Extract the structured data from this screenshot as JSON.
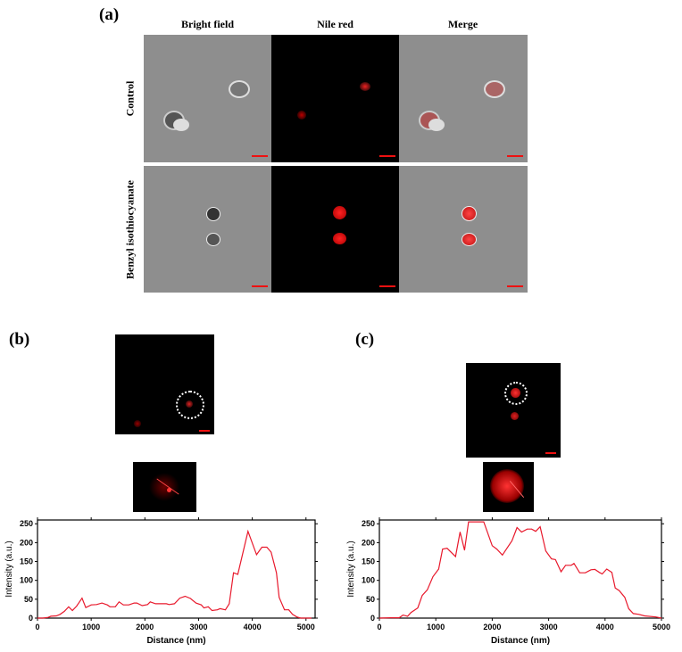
{
  "panel_a": {
    "label": "(a)",
    "columns": [
      "Bright field",
      "Nile red",
      "Merge"
    ],
    "rows": [
      "Control",
      "Benzyl isothiocyanate"
    ]
  },
  "panel_b": {
    "label": "(b)"
  },
  "panel_c": {
    "label": "(c)"
  },
  "colors": {
    "line": "#e8192c",
    "scale_bar": "#ee1111"
  },
  "chart_data": [
    {
      "type": "line",
      "panel": "b",
      "xlabel": "Distance (nm)",
      "ylabel": "Intensity (a.u.)",
      "xlim": [
        0,
        5170
      ],
      "ylim": [
        0,
        260
      ],
      "xticks": [
        0,
        1000,
        2000,
        3000,
        4000,
        5000
      ],
      "yticks": [
        0,
        50,
        100,
        150,
        200,
        250
      ],
      "x": [
        0,
        100,
        200,
        250,
        350,
        420,
        500,
        580,
        650,
        730,
        830,
        900,
        1000,
        1100,
        1200,
        1300,
        1350,
        1450,
        1520,
        1600,
        1700,
        1800,
        1850,
        1950,
        2050,
        2100,
        2200,
        2400,
        2450,
        2550,
        2650,
        2750,
        2850,
        2950,
        3050,
        3100,
        3180,
        3250,
        3350,
        3400,
        3500,
        3570,
        3650,
        3730,
        3920,
        4080,
        4180,
        4270,
        4350,
        4450,
        4500,
        4600,
        4680,
        4750,
        4830,
        4900,
        5100
      ],
      "y": [
        0,
        0,
        2,
        5,
        6,
        10,
        18,
        30,
        20,
        32,
        53,
        28,
        35,
        36,
        40,
        35,
        30,
        30,
        43,
        35,
        35,
        40,
        40,
        33,
        36,
        43,
        38,
        38,
        36,
        38,
        53,
        58,
        52,
        40,
        35,
        27,
        30,
        20,
        22,
        25,
        22,
        38,
        120,
        116,
        230,
        168,
        188,
        188,
        175,
        120,
        55,
        22,
        22,
        10,
        3,
        0,
        0
      ]
    },
    {
      "type": "line",
      "panel": "c",
      "xlabel": "Distance (nm)",
      "ylabel": "Intensity (a.u.)",
      "xlim": [
        0,
        5000
      ],
      "ylim": [
        0,
        260
      ],
      "xticks": [
        0,
        1000,
        2000,
        3000,
        4000,
        5000
      ],
      "yticks": [
        0,
        50,
        100,
        150,
        200,
        250
      ],
      "x": [
        0,
        200,
        350,
        420,
        500,
        560,
        680,
        760,
        850,
        950,
        1050,
        1120,
        1200,
        1350,
        1430,
        1510,
        1580,
        1850,
        2000,
        2080,
        2180,
        2350,
        2440,
        2520,
        2620,
        2700,
        2770,
        2850,
        2950,
        3050,
        3120,
        3220,
        3300,
        3400,
        3450,
        3550,
        3650,
        3750,
        3820,
        3900,
        3950,
        4030,
        4120,
        4180,
        4250,
        4350,
        4420,
        4500,
        4600,
        4700,
        4900,
        5000
      ],
      "y": [
        0,
        1,
        1,
        8,
        5,
        15,
        27,
        60,
        75,
        110,
        130,
        183,
        185,
        163,
        228,
        180,
        255,
        255,
        192,
        183,
        167,
        205,
        240,
        228,
        236,
        236,
        230,
        242,
        178,
        157,
        155,
        123,
        140,
        140,
        145,
        120,
        120,
        128,
        129,
        121,
        117,
        130,
        121,
        80,
        73,
        55,
        25,
        12,
        10,
        6,
        3,
        0
      ]
    }
  ]
}
